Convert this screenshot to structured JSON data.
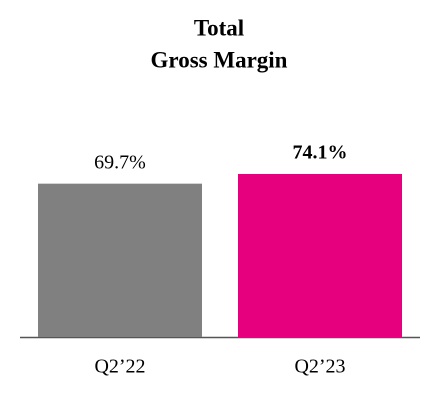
{
  "chart_data": {
    "type": "bar",
    "title": [
      "Total",
      "Gross Margin"
    ],
    "categories": [
      "Q2’22",
      "Q2’23"
    ],
    "values": [
      69.7,
      74.1
    ],
    "value_labels": [
      "69.7%",
      "74.1%"
    ],
    "colors": [
      "#808080",
      "#e6007e"
    ],
    "bold_labels": [
      false,
      true
    ]
  }
}
